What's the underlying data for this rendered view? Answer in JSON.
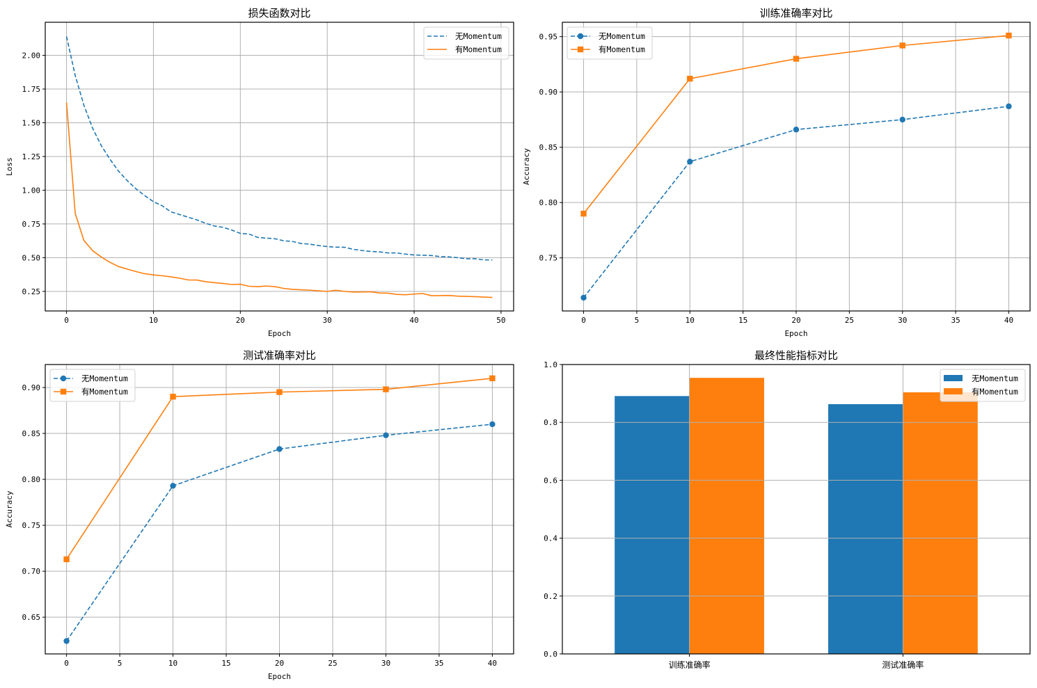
{
  "figure": {
    "colors": {
      "no_momentum": "#1f77b4",
      "momentum": "#ff7f0e",
      "grid": "#b0b0b0"
    }
  },
  "chart_data": [
    {
      "id": "loss",
      "type": "line",
      "title": "损失函数对比",
      "xlabel": "Epoch",
      "ylabel": "Loss",
      "xlim": [
        -2.45,
        51.45
      ],
      "ylim": [
        0.105,
        2.245
      ],
      "xticks": [
        0,
        10,
        20,
        30,
        40,
        50
      ],
      "xtick_labels": [
        "0",
        "10",
        "20",
        "30",
        "40",
        "50"
      ],
      "yticks": [
        0.25,
        0.5,
        0.75,
        1.0,
        1.25,
        1.5,
        1.75,
        2.0
      ],
      "ytick_labels": [
        "0.25",
        "0.50",
        "0.75",
        "1.00",
        "1.25",
        "1.50",
        "1.75",
        "2.00"
      ],
      "grid": true,
      "legend": "top-right",
      "x": [
        0,
        1,
        2,
        3,
        4,
        5,
        6,
        7,
        8,
        9,
        10,
        11,
        12,
        13,
        14,
        15,
        16,
        17,
        18,
        19,
        20,
        21,
        22,
        23,
        24,
        25,
        26,
        27,
        28,
        29,
        30,
        31,
        32,
        33,
        34,
        35,
        36,
        37,
        38,
        39,
        40,
        41,
        42,
        43,
        44,
        45,
        46,
        47,
        48,
        49
      ],
      "series": [
        {
          "name": "无Momentum",
          "style": "dashed",
          "marker": "none",
          "values": [
            2.14,
            1.85,
            1.63,
            1.46,
            1.33,
            1.23,
            1.14,
            1.07,
            1.01,
            0.96,
            0.915,
            0.885,
            0.84,
            0.82,
            0.8,
            0.78,
            0.755,
            0.735,
            0.725,
            0.705,
            0.68,
            0.675,
            0.65,
            0.645,
            0.64,
            0.625,
            0.62,
            0.605,
            0.6,
            0.59,
            0.582,
            0.578,
            0.577,
            0.562,
            0.553,
            0.546,
            0.543,
            0.535,
            0.535,
            0.526,
            0.52,
            0.518,
            0.516,
            0.508,
            0.506,
            0.5,
            0.492,
            0.492,
            0.484,
            0.483
          ]
        },
        {
          "name": "有Momentum",
          "style": "solid",
          "marker": "none",
          "values": [
            1.65,
            0.828,
            0.628,
            0.552,
            0.505,
            0.465,
            0.434,
            0.415,
            0.397,
            0.381,
            0.372,
            0.366,
            0.358,
            0.348,
            0.335,
            0.334,
            0.322,
            0.315,
            0.309,
            0.301,
            0.303,
            0.288,
            0.285,
            0.29,
            0.285,
            0.272,
            0.265,
            0.262,
            0.259,
            0.254,
            0.25,
            0.258,
            0.25,
            0.245,
            0.246,
            0.247,
            0.238,
            0.237,
            0.228,
            0.225,
            0.23,
            0.234,
            0.218,
            0.219,
            0.22,
            0.215,
            0.213,
            0.211,
            0.208,
            0.205
          ]
        }
      ]
    },
    {
      "id": "train_acc",
      "type": "line",
      "title": "训练准确率对比",
      "xlabel": "Epoch",
      "ylabel": "Accuracy",
      "xlim": [
        -2,
        42
      ],
      "ylim": [
        0.702,
        0.963
      ],
      "xticks": [
        0,
        5,
        10,
        15,
        20,
        25,
        30,
        35,
        40
      ],
      "xtick_labels": [
        "0",
        "5",
        "10",
        "15",
        "20",
        "25",
        "30",
        "35",
        "40"
      ],
      "yticks": [
        0.75,
        0.8,
        0.85,
        0.9,
        0.95
      ],
      "ytick_labels": [
        "0.75",
        "0.80",
        "0.85",
        "0.90",
        "0.95"
      ],
      "grid": true,
      "legend": "top-left",
      "x": [
        0,
        10,
        20,
        30,
        40
      ],
      "series": [
        {
          "name": "无Momentum",
          "style": "dashed",
          "marker": "circle",
          "values": [
            0.714,
            0.837,
            0.866,
            0.875,
            0.887
          ]
        },
        {
          "name": "有Momentum",
          "style": "solid",
          "marker": "square",
          "values": [
            0.79,
            0.912,
            0.93,
            0.942,
            0.951
          ]
        }
      ]
    },
    {
      "id": "test_acc",
      "type": "line",
      "title": "测试准确率对比",
      "xlabel": "Epoch",
      "ylabel": "Accuracy",
      "xlim": [
        -2,
        42
      ],
      "ylim": [
        0.61,
        0.925
      ],
      "xticks": [
        0,
        5,
        10,
        15,
        20,
        25,
        30,
        35,
        40
      ],
      "xtick_labels": [
        "0",
        "5",
        "10",
        "15",
        "20",
        "25",
        "30",
        "35",
        "40"
      ],
      "yticks": [
        0.65,
        0.7,
        0.75,
        0.8,
        0.85,
        0.9
      ],
      "ytick_labels": [
        "0.65",
        "0.70",
        "0.75",
        "0.80",
        "0.85",
        "0.90"
      ],
      "grid": true,
      "legend": "top-left",
      "x": [
        0,
        10,
        20,
        30,
        40
      ],
      "series": [
        {
          "name": "无Momentum",
          "style": "dashed",
          "marker": "circle",
          "values": [
            0.624,
            0.793,
            0.833,
            0.848,
            0.86
          ]
        },
        {
          "name": "有Momentum",
          "style": "solid",
          "marker": "square",
          "values": [
            0.713,
            0.89,
            0.895,
            0.898,
            0.91
          ]
        }
      ]
    },
    {
      "id": "final",
      "type": "bar",
      "title": "最终性能指标对比",
      "xlabel": "",
      "ylabel": "",
      "categories": [
        "训练准确率",
        "测试准确率"
      ],
      "ylim": [
        0,
        1.0
      ],
      "yticks": [
        0.0,
        0.2,
        0.4,
        0.6,
        0.8,
        1.0
      ],
      "ytick_labels": [
        "0.0",
        "0.2",
        "0.4",
        "0.6",
        "0.8",
        "1.0"
      ],
      "grid": true,
      "legend": "top-right",
      "series": [
        {
          "name": "无Momentum",
          "values": [
            0.891,
            0.863
          ]
        },
        {
          "name": "有Momentum",
          "values": [
            0.954,
            0.904
          ]
        }
      ]
    }
  ]
}
